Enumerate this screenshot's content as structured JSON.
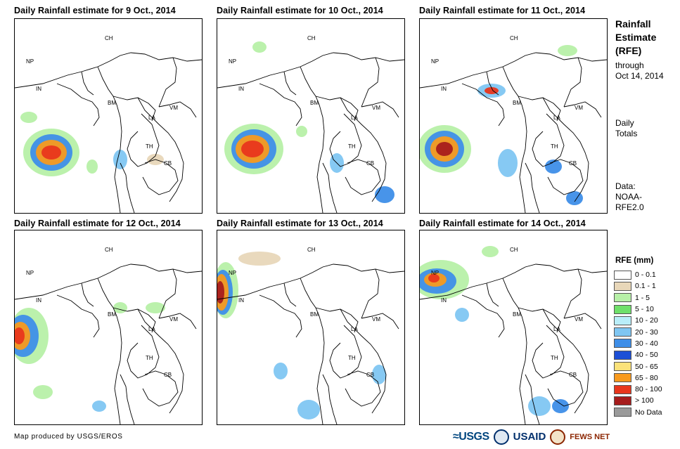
{
  "panels": [
    {
      "title": "Daily Rainfall estimate for 9 Oct., 2014"
    },
    {
      "title": "Daily Rainfall estimate for 10 Oct., 2014"
    },
    {
      "title": "Daily Rainfall estimate for 11 Oct., 2014"
    },
    {
      "title": "Daily Rainfall estimate for 12 Oct., 2014"
    },
    {
      "title": "Daily Rainfall estimate for 13 Oct., 2014"
    },
    {
      "title": "Daily Rainfall estimate for 14 Oct., 2014"
    }
  ],
  "country_labels": [
    "CH",
    "NP",
    "IN",
    "BM",
    "VM",
    "LA",
    "TH",
    "CB"
  ],
  "right_text": {
    "title_line1": "Rainfall",
    "title_line2": "Estimate",
    "title_line3": "(RFE)",
    "through_line1": "through",
    "through_line2": "Oct 14, 2014",
    "daily_line1": "Daily",
    "daily_line2": "Totals",
    "data_line1": "Data:",
    "data_line2": "NOAA-",
    "data_line3": "RFE2.0"
  },
  "legend": {
    "title": "RFE (mm)",
    "items": [
      {
        "label": "0 - 0.1",
        "color": "#ffffff"
      },
      {
        "label": "0.1 - 1",
        "color": "#e8d7b9"
      },
      {
        "label": "1 - 5",
        "color": "#b7f0a8"
      },
      {
        "label": "5 - 10",
        "color": "#6fe06a"
      },
      {
        "label": "10 - 20",
        "color": "#b9eef9"
      },
      {
        "label": "20 - 30",
        "color": "#7fc6f2"
      },
      {
        "label": "30 - 40",
        "color": "#3e8ee8"
      },
      {
        "label": "40 - 50",
        "color": "#1c4fd6"
      },
      {
        "label": "50 - 65",
        "color": "#fbe27a"
      },
      {
        "label": "65 - 80",
        "color": "#f89a1e"
      },
      {
        "label": "80 - 100",
        "color": "#e8361c"
      },
      {
        "label": "> 100",
        "color": "#a61c1c"
      },
      {
        "label": "No Data",
        "color": "#9a9a9a"
      }
    ]
  },
  "footer": {
    "credit": "Map produced by USGS/EROS"
  },
  "logos": {
    "usgs": "≈USGS",
    "usaid": "USAID",
    "fews": "FEWS NET"
  }
}
